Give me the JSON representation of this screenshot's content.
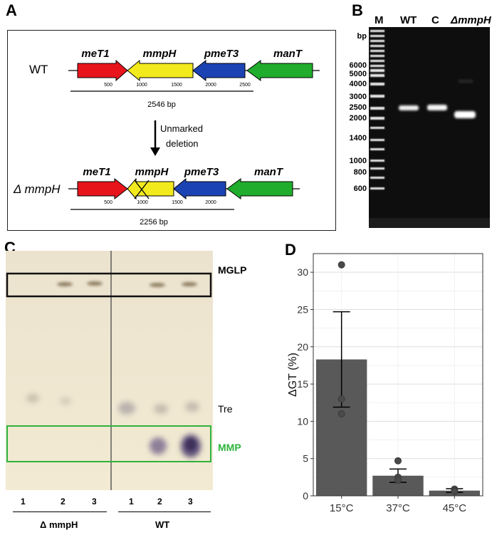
{
  "figure": {
    "panel_labels": {
      "a": "A",
      "b": "B",
      "c": "C",
      "d": "D"
    },
    "panelA": {
      "wt_label": "WT",
      "mut_label": "Δ mmpH",
      "genes": [
        "meT1",
        "mmpH",
        "pmeT3",
        "manT"
      ],
      "wt_ticks": [
        "500",
        "1000",
        "1500",
        "2000",
        "2500"
      ],
      "mut_ticks": [
        "500",
        "1000",
        "1500",
        "2000"
      ],
      "wt_length": "2546 bp",
      "mut_length": "2256 bp",
      "deletion_line1": "Unmarked",
      "deletion_line2": "deletion",
      "gene_colors": {
        "meT1": "#e8141b",
        "mmpH": "#f3ea1e",
        "pmeT3": "#1c43b4",
        "manT": "#20ad2d"
      }
    },
    "panelB": {
      "lanes": [
        "M",
        "WT",
        "C",
        "ΔmmpH"
      ],
      "unit": "bp",
      "markers": [
        "6000",
        "5000",
        "4000",
        "3000",
        "2500",
        "2000",
        "1400",
        "1000",
        "800",
        "600"
      ]
    },
    "panelC": {
      "band_labels": {
        "mglp": "MGLP",
        "tre": "Tre",
        "mmp": "MMP"
      },
      "lane_numbers": [
        "1",
        "2",
        "3",
        "1",
        "2",
        "3"
      ],
      "group_mut": "Δ mmpH",
      "group_wt": "WT",
      "mmp_color": "#2db43c"
    },
    "chart_data": {
      "type": "bar",
      "categories": [
        "15°C",
        "37°C",
        "45°C"
      ],
      "values": [
        18.3,
        2.7,
        0.7
      ],
      "errors": [
        6.4,
        0.9,
        0.25
      ],
      "points": [
        [
          31.0,
          13.0,
          11.0
        ],
        [
          4.7,
          2.5,
          2.1
        ],
        [
          0.9,
          0.7,
          0.6
        ]
      ],
      "ylabel": "ΔGT (%)",
      "xlabel": "",
      "ylim": [
        0,
        32.5
      ],
      "yticks": [
        0,
        5,
        10,
        15,
        20,
        25,
        30
      ],
      "bar_color": "#595959",
      "grid": true
    }
  }
}
